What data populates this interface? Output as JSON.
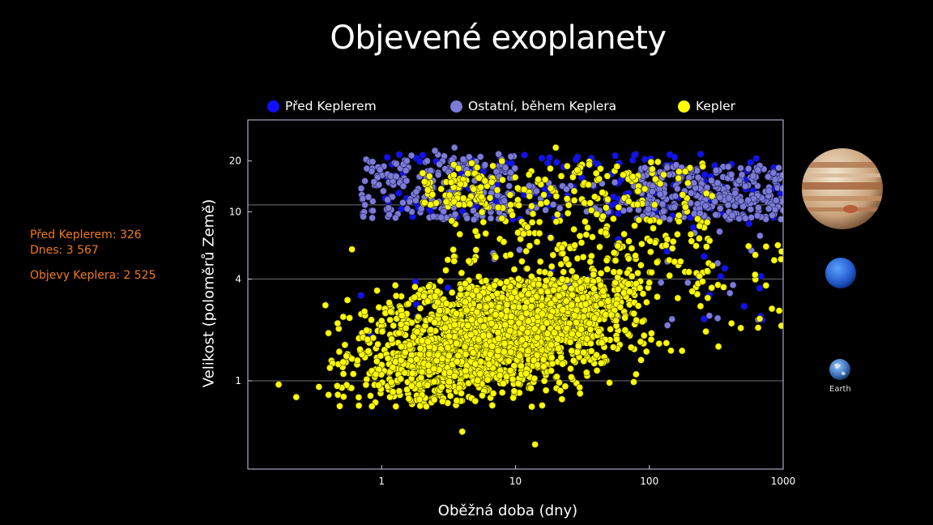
{
  "title": "Objevené exoplanety",
  "stats": {
    "before_kepler": "Před Keplerem: 326",
    "today": "Dnes: 3 567",
    "kepler_discoveries": "Objevy Keplera: 2 525"
  },
  "legend": [
    {
      "label": "Před Keplerem",
      "color": "#1010ff"
    },
    {
      "label": "Ostatní, během Keplera",
      "color": "#7b7bd6"
    },
    {
      "label": "Kepler",
      "color": "#ffff00"
    }
  ],
  "planets": {
    "jupiter_icon": "jupiter-icon",
    "neptune_icon": "neptune-icon",
    "earth_icon": "earth-icon",
    "earth_label": "Earth"
  },
  "chart_data": {
    "type": "scatter",
    "title": "Objevené exoplanety",
    "xlabel": "Oběžná doba (dny)",
    "ylabel": "Velikost (poloměrů Země)",
    "x_scale": "log",
    "y_scale": "log",
    "xlim": [
      0.1,
      1000
    ],
    "ylim": [
      0.3,
      35
    ],
    "x_ticks": [
      "1",
      "10",
      "100",
      "1000"
    ],
    "y_ticks": [
      "1",
      "4",
      "10",
      "20"
    ],
    "y_gridlines": [
      1,
      4,
      11
    ],
    "series": [
      {
        "name": "Před Keplerem",
        "color": "#1010ff",
        "clusters": [
          {
            "x_range": [
              1,
              1000
            ],
            "y_range": [
              9,
              22
            ],
            "count": 200
          },
          {
            "x_range": [
              0.7,
              10
            ],
            "y_range": [
              1.5,
              4
            ],
            "count": 12
          },
          {
            "x_range": [
              10,
              800
            ],
            "y_range": [
              2,
              9
            ],
            "count": 25
          }
        ],
        "points": [
          [
            0.7,
            3.2
          ],
          [
            1.1,
            21
          ],
          [
            0.7,
            1.9
          ],
          [
            700,
            2.3
          ]
        ]
      },
      {
        "name": "Ostatní, během Keplera",
        "color": "#7b7bd6",
        "clusters": [
          {
            "x_range": [
              0.7,
              10
            ],
            "y_range": [
              9,
              22
            ],
            "count": 220
          },
          {
            "x_range": [
              80,
              1000
            ],
            "y_range": [
              9,
              19
            ],
            "count": 300
          },
          {
            "x_range": [
              10,
              80
            ],
            "y_range": [
              10,
              15
            ],
            "count": 40
          },
          {
            "x_range": [
              5,
              800
            ],
            "y_range": [
              2,
              8
            ],
            "count": 30
          }
        ],
        "points": [
          [
            650,
            2.3
          ],
          [
            2.5,
            23
          ],
          [
            3.5,
            24
          ]
        ]
      },
      {
        "name": "Kepler",
        "color": "#ffff00",
        "clusters": [
          {
            "x_range": [
              0.4,
              100
            ],
            "y_range": [
              0.7,
              4
            ],
            "count": 2100,
            "center": [
              8,
              2
            ],
            "spread": [
              0.55,
              0.22
            ],
            "corr": 0.5
          },
          {
            "x_range": [
              3,
              300
            ],
            "y_range": [
              4,
              20
            ],
            "count": 320
          },
          {
            "x_range": [
              2,
              6
            ],
            "y_range": [
              11,
              17
            ],
            "count": 60
          },
          {
            "x_range": [
              100,
              1000
            ],
            "y_range": [
              1.5,
              7
            ],
            "count": 45
          }
        ],
        "points": [
          [
            0.17,
            0.95
          ],
          [
            0.23,
            0.8
          ],
          [
            0.34,
            0.92
          ],
          [
            0.38,
            2.8
          ],
          [
            0.6,
            6
          ],
          [
            4,
            0.5
          ],
          [
            14,
            0.42
          ],
          [
            20,
            24
          ]
        ]
      }
    ]
  }
}
